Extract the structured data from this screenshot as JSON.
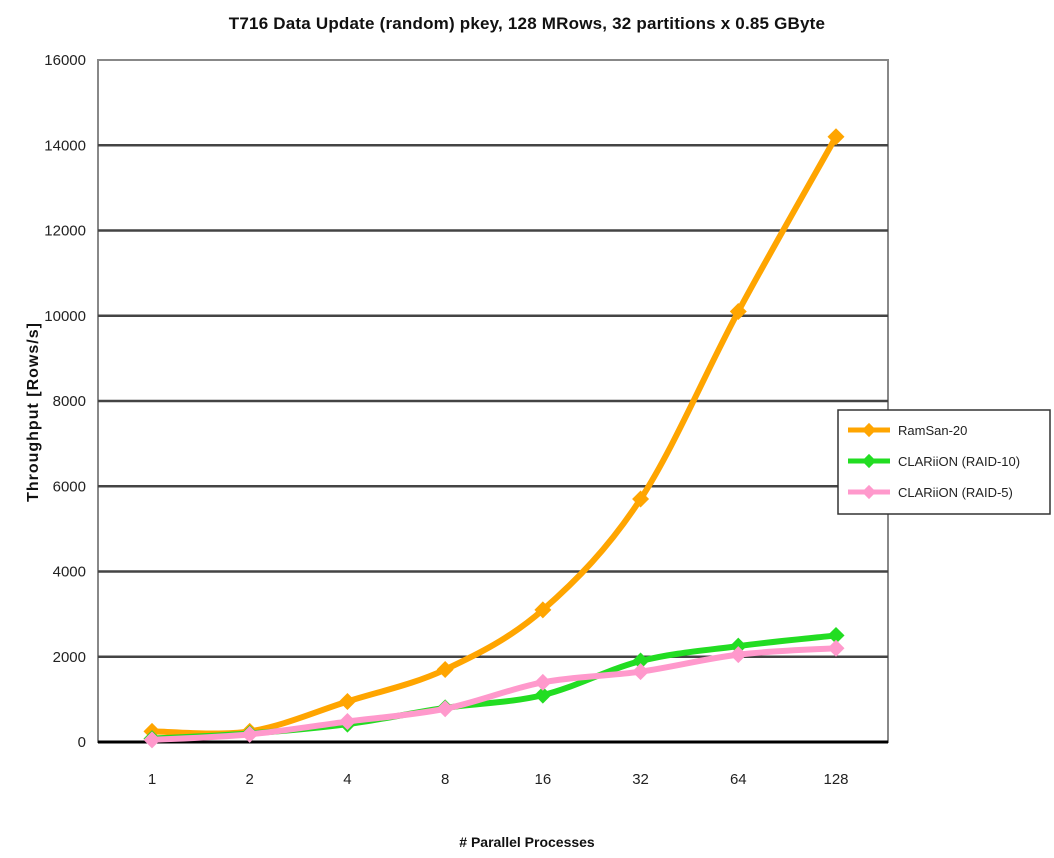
{
  "chart_data": {
    "type": "line",
    "title": "T716 Data Update (random) pkey, 128 MRows, 32 partitions x 0.85 GByte",
    "xlabel": "# Parallel Processes",
    "ylabel": "Throughput [Rows/s]",
    "categories": [
      "1",
      "2",
      "4",
      "8",
      "16",
      "32",
      "64",
      "128"
    ],
    "ylim": [
      0,
      16000
    ],
    "yticks": [
      0,
      2000,
      4000,
      6000,
      8000,
      10000,
      12000,
      14000,
      16000
    ],
    "grid": true,
    "legend_position": "right",
    "series": [
      {
        "name": "RamSan-20",
        "color": "#ffa500",
        "values": [
          250,
          250,
          950,
          1700,
          3100,
          5700,
          10100,
          14200
        ]
      },
      {
        "name": "CLARiiON (RAID-10)",
        "color": "#22dd22",
        "values": [
          80,
          200,
          420,
          800,
          1100,
          1900,
          2250,
          2500
        ]
      },
      {
        "name": "CLARiiON (RAID-5)",
        "color": "#ff99cc",
        "values": [
          50,
          180,
          480,
          780,
          1400,
          1650,
          2050,
          2200
        ]
      }
    ]
  }
}
